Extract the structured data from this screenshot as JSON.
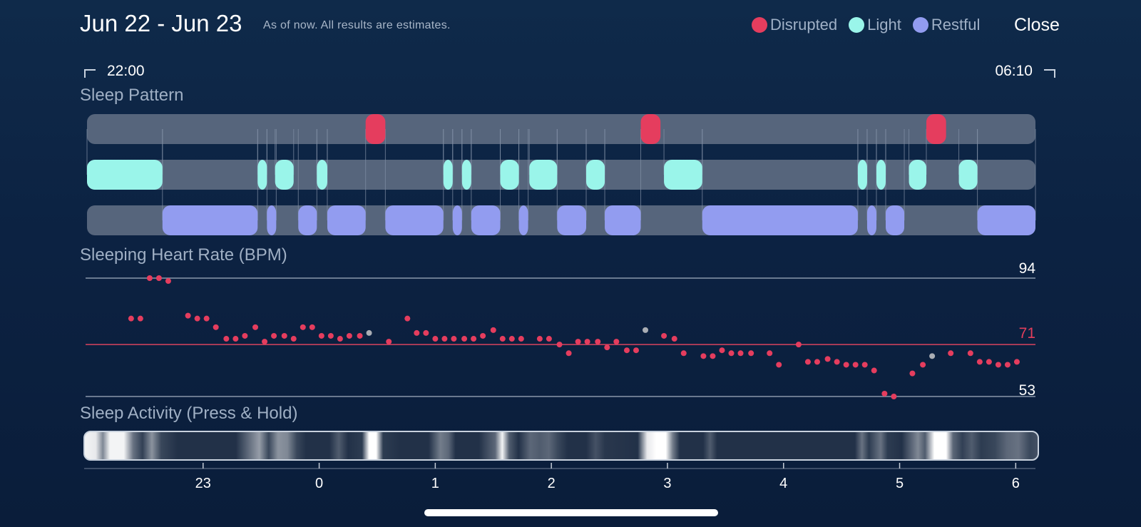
{
  "header": {
    "title": "Jun 22 - Jun 23",
    "note": "As of now. All results are estimates.",
    "close_label": "Close"
  },
  "legend": [
    {
      "label": "Disrupted",
      "color": "#e53d5e"
    },
    {
      "label": "Light",
      "color": "#9af5ea"
    },
    {
      "label": "Restful",
      "color": "#929cf0"
    }
  ],
  "time_range": {
    "start": "22:00",
    "end": "06:10"
  },
  "sections": {
    "sleep_pattern": "Sleep Pattern",
    "heart_rate": "Sleeping Heart Rate (BPM)",
    "activity": "Sleep Activity (Press & Hold)"
  },
  "heart_rate": {
    "max_label": "94",
    "avg_label": "71",
    "min_label": "53",
    "max": 94,
    "avg": 71,
    "min": 53
  },
  "colors": {
    "disrupted": "#e53d5e",
    "light": "#9af5ea",
    "restful": "#929cf0",
    "track": "#56657c",
    "dot": "#e53d5e",
    "dot_gray": "#a9adb4"
  },
  "chart_data": {
    "type": "scatter",
    "x_unit": "hour",
    "x_range": [
      22.0,
      30.17
    ],
    "x_ticks": [
      "23",
      "0",
      "1",
      "2",
      "3",
      "4",
      "5",
      "6"
    ],
    "x_tick_values": [
      23,
      24,
      25,
      26,
      27,
      28,
      29,
      30
    ],
    "y_range": [
      53,
      94
    ],
    "sleep_pattern": {
      "disrupted": [
        [
          24.4,
          24.57
        ],
        [
          26.77,
          26.94
        ],
        [
          29.23,
          29.4
        ]
      ],
      "light": [
        [
          22.0,
          22.65
        ],
        [
          23.47,
          23.55
        ],
        [
          23.62,
          23.78
        ],
        [
          23.98,
          24.07
        ],
        [
          25.07,
          25.15
        ],
        [
          25.23,
          25.31
        ],
        [
          25.56,
          25.72
        ],
        [
          25.81,
          26.05
        ],
        [
          26.3,
          26.46
        ],
        [
          26.97,
          27.3
        ],
        [
          28.64,
          28.72
        ],
        [
          28.8,
          28.88
        ],
        [
          29.08,
          29.23
        ],
        [
          29.51,
          29.67
        ]
      ],
      "restful": [
        [
          22.65,
          23.47
        ],
        [
          23.55,
          23.63
        ],
        [
          23.82,
          23.98
        ],
        [
          24.07,
          24.4
        ],
        [
          24.57,
          25.07
        ],
        [
          25.15,
          25.23
        ],
        [
          25.31,
          25.56
        ],
        [
          25.72,
          25.8
        ],
        [
          26.05,
          26.3
        ],
        [
          26.46,
          26.77
        ],
        [
          27.3,
          28.64
        ],
        [
          28.72,
          28.8
        ],
        [
          28.88,
          29.04
        ],
        [
          29.67,
          30.17
        ]
      ]
    },
    "heart_rate_points": [
      [
        22.38,
        80
      ],
      [
        22.46,
        80
      ],
      [
        22.54,
        94
      ],
      [
        22.62,
        94
      ],
      [
        22.7,
        93
      ],
      [
        22.87,
        81
      ],
      [
        22.95,
        80
      ],
      [
        23.03,
        80
      ],
      [
        23.11,
        77
      ],
      [
        23.2,
        73
      ],
      [
        23.28,
        73
      ],
      [
        23.36,
        74
      ],
      [
        23.45,
        77
      ],
      [
        23.53,
        72
      ],
      [
        23.61,
        74
      ],
      [
        23.7,
        74
      ],
      [
        23.78,
        73
      ],
      [
        23.86,
        77
      ],
      [
        23.94,
        77
      ],
      [
        24.02,
        74
      ],
      [
        24.1,
        74
      ],
      [
        24.18,
        73
      ],
      [
        24.26,
        74
      ],
      [
        24.35,
        74
      ],
      [
        24.43,
        75,
        "gray"
      ],
      [
        24.6,
        72
      ],
      [
        24.76,
        80
      ],
      [
        24.84,
        75
      ],
      [
        24.92,
        75
      ],
      [
        25.0,
        73
      ],
      [
        25.08,
        73
      ],
      [
        25.16,
        73
      ],
      [
        25.25,
        73
      ],
      [
        25.33,
        73
      ],
      [
        25.41,
        74
      ],
      [
        25.5,
        76
      ],
      [
        25.58,
        73
      ],
      [
        25.66,
        73
      ],
      [
        25.74,
        73
      ],
      [
        25.9,
        73
      ],
      [
        25.98,
        73
      ],
      [
        26.07,
        71
      ],
      [
        26.15,
        68
      ],
      [
        26.23,
        72
      ],
      [
        26.31,
        72
      ],
      [
        26.4,
        72
      ],
      [
        26.48,
        70
      ],
      [
        26.56,
        72
      ],
      [
        26.65,
        69
      ],
      [
        26.73,
        69
      ],
      [
        26.81,
        76,
        "gray"
      ],
      [
        26.97,
        74
      ],
      [
        27.06,
        73
      ],
      [
        27.14,
        68
      ],
      [
        27.31,
        67
      ],
      [
        27.39,
        67
      ],
      [
        27.47,
        69
      ],
      [
        27.55,
        68
      ],
      [
        27.63,
        68
      ],
      [
        27.72,
        68
      ],
      [
        27.88,
        68
      ],
      [
        27.96,
        64
      ],
      [
        28.13,
        71
      ],
      [
        28.21,
        65
      ],
      [
        28.29,
        65
      ],
      [
        28.38,
        66
      ],
      [
        28.46,
        65
      ],
      [
        28.54,
        64
      ],
      [
        28.62,
        64
      ],
      [
        28.7,
        64
      ],
      [
        28.78,
        62
      ],
      [
        28.87,
        54
      ],
      [
        28.95,
        53
      ],
      [
        29.11,
        61
      ],
      [
        29.2,
        64
      ],
      [
        29.28,
        67,
        "gray"
      ],
      [
        29.44,
        68
      ],
      [
        29.61,
        68
      ],
      [
        29.69,
        65
      ],
      [
        29.77,
        65
      ],
      [
        29.85,
        64
      ],
      [
        29.93,
        64
      ],
      [
        30.01,
        65
      ]
    ],
    "activity_intensity": [
      [
        22.0,
        0.95
      ],
      [
        22.1,
        0.9
      ],
      [
        22.16,
        0.45
      ],
      [
        22.22,
        0.95
      ],
      [
        22.34,
        0.95
      ],
      [
        22.42,
        0.35
      ],
      [
        22.5,
        0.12
      ],
      [
        22.58,
        0.5
      ],
      [
        22.66,
        0.15
      ],
      [
        22.8,
        0.05
      ],
      [
        23.3,
        0.05
      ],
      [
        23.5,
        0.55
      ],
      [
        23.58,
        0.15
      ],
      [
        23.66,
        0.5
      ],
      [
        23.74,
        0.45
      ],
      [
        23.82,
        0.15
      ],
      [
        23.9,
        0.05
      ],
      [
        24.1,
        0.05
      ],
      [
        24.18,
        0.25
      ],
      [
        24.26,
        0.05
      ],
      [
        24.38,
        0.1
      ],
      [
        24.44,
        1.0
      ],
      [
        24.5,
        1.0
      ],
      [
        24.56,
        0.1
      ],
      [
        24.7,
        0.05
      ],
      [
        24.95,
        0.05
      ],
      [
        25.05,
        0.4
      ],
      [
        25.12,
        0.3
      ],
      [
        25.18,
        0.05
      ],
      [
        25.38,
        0.05
      ],
      [
        25.52,
        0.3
      ],
      [
        25.58,
        0.95
      ],
      [
        25.64,
        0.25
      ],
      [
        25.72,
        0.05
      ],
      [
        25.82,
        0.3
      ],
      [
        25.9,
        0.25
      ],
      [
        25.98,
        0.3
      ],
      [
        26.06,
        0.15
      ],
      [
        26.14,
        0.05
      ],
      [
        26.3,
        0.05
      ],
      [
        26.38,
        0.2
      ],
      [
        26.46,
        0.08
      ],
      [
        26.74,
        0.05
      ],
      [
        26.82,
        0.9
      ],
      [
        26.9,
        1.0
      ],
      [
        26.98,
        1.0
      ],
      [
        27.04,
        0.4
      ],
      [
        27.1,
        0.05
      ],
      [
        27.3,
        0.05
      ],
      [
        27.36,
        0.25
      ],
      [
        27.42,
        0.05
      ],
      [
        28.6,
        0.05
      ],
      [
        28.66,
        0.35
      ],
      [
        28.72,
        0.1
      ],
      [
        28.82,
        0.35
      ],
      [
        28.88,
        0.1
      ],
      [
        29.0,
        0.05
      ],
      [
        29.14,
        0.45
      ],
      [
        29.2,
        0.25
      ],
      [
        29.28,
        1.0
      ],
      [
        29.38,
        1.0
      ],
      [
        29.44,
        0.3
      ],
      [
        29.52,
        0.12
      ],
      [
        29.6,
        0.25
      ],
      [
        29.68,
        0.1
      ],
      [
        29.8,
        0.15
      ],
      [
        29.9,
        0.3
      ],
      [
        30.0,
        0.35
      ],
      [
        30.1,
        0.15
      ],
      [
        30.17,
        0.2
      ]
    ]
  }
}
